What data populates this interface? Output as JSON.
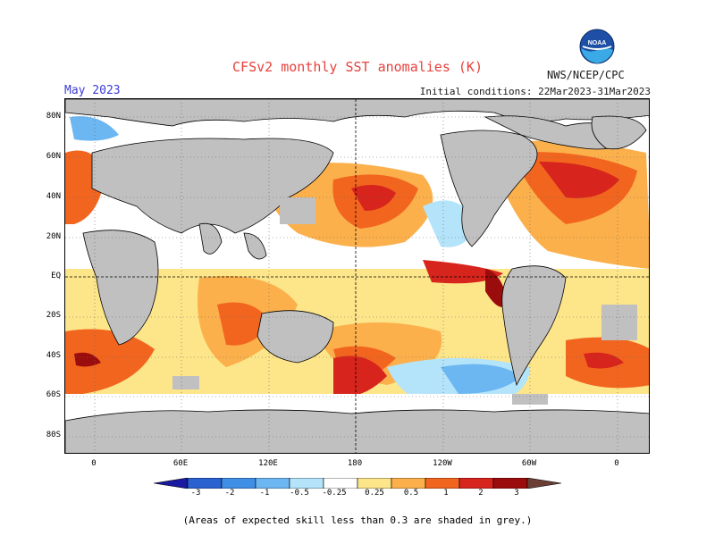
{
  "header": {
    "title": "CFSv2 monthly SST anomalies (K)",
    "agency": "NWS/NCEP/CPC",
    "month": "May 2023",
    "initial_conditions": "Initial conditions: 22Mar2023-31Mar2023",
    "logo_text": "NOAA"
  },
  "map": {
    "lat_labels": [
      "80N",
      "60N",
      "40N",
      "20N",
      "EQ",
      "20S",
      "40S",
      "60S",
      "80S"
    ],
    "lon_labels": [
      "0",
      "60E",
      "120E",
      "180",
      "120W",
      "60W",
      "0"
    ],
    "land_color": "#c0c0c0",
    "ocean_neutral_color": "#ffffff"
  },
  "colorbar": {
    "labels": [
      "-3",
      "-2",
      "-1",
      "-0.5",
      "-0.25",
      "0.25",
      "0.5",
      "1",
      "2",
      "3"
    ],
    "colors": [
      "#1a1aa0",
      "#2a62d0",
      "#3f8fe6",
      "#6cb6f2",
      "#b4e4fa",
      "#ffffff",
      "#fde58a",
      "#fbb04c",
      "#f2651f",
      "#d7241c",
      "#9b0d0d",
      "#6b3f36"
    ]
  },
  "footnote": "(Areas of expected skill less than 0.3 are shaded in grey.)"
}
